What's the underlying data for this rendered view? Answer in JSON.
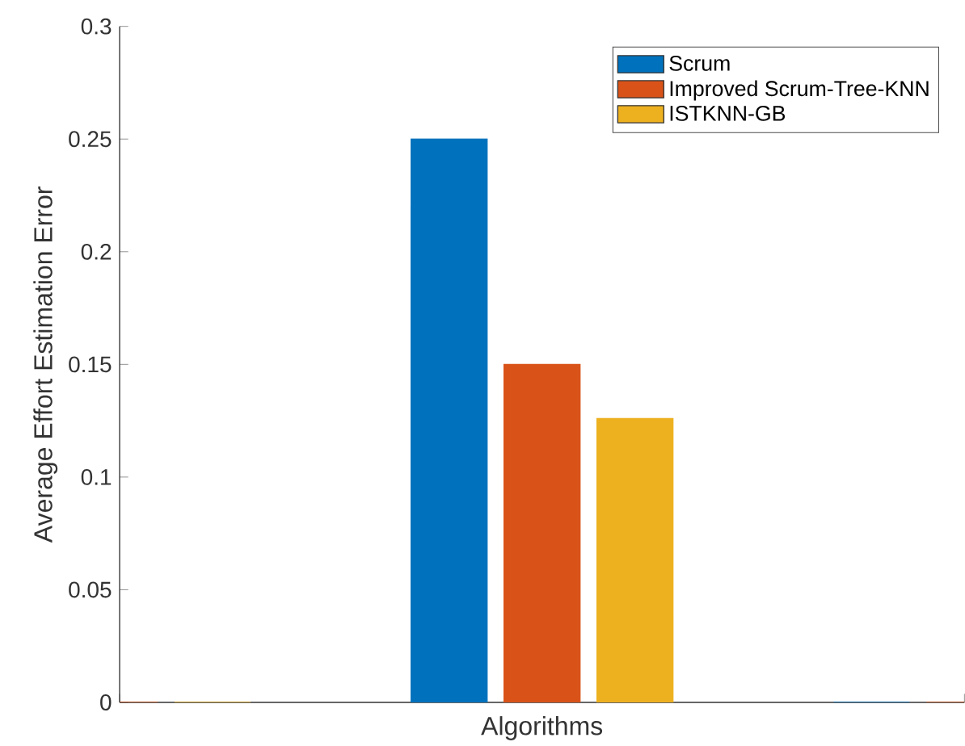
{
  "chart_data": {
    "type": "bar",
    "xlabel": "Algorithms",
    "ylabel": "Average Effort Estimation Error",
    "categories": [
      null,
      null,
      null
    ],
    "series": [
      {
        "name": "Scrum",
        "color": "#0072bd",
        "values": [
          0,
          0.25,
          0
        ]
      },
      {
        "name": "Improved Scrum-Tree-KNN",
        "color": "#d95319",
        "values": [
          0,
          0.15,
          0
        ]
      },
      {
        "name": "ISTKNN-GB",
        "color": "#edb120",
        "values": [
          0,
          0.126,
          0
        ]
      }
    ],
    "ylim": [
      0,
      0.3
    ],
    "yticks": [
      0,
      0.05,
      0.1,
      0.15,
      0.2,
      0.25,
      0.3
    ],
    "legend": "top right",
    "grid": false
  }
}
